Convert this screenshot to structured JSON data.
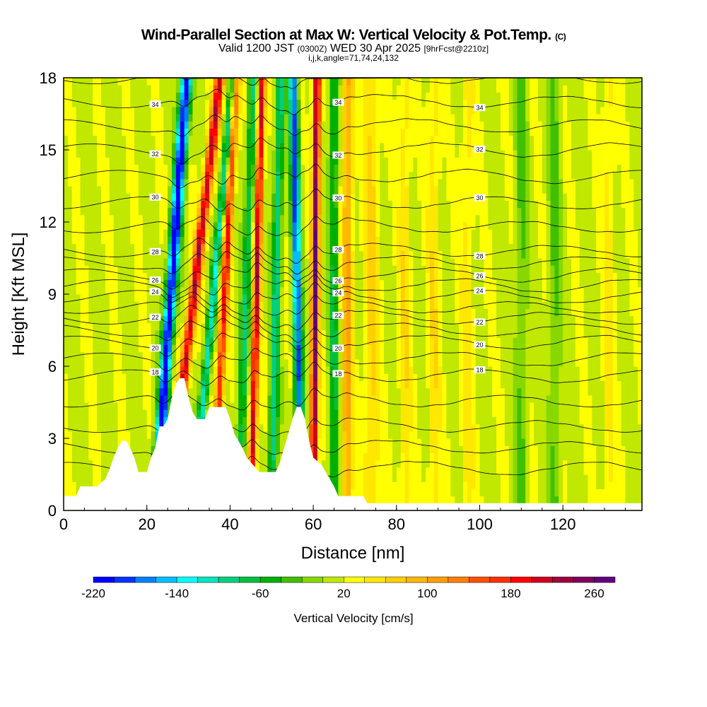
{
  "chart_data": {
    "type": "heatmap",
    "title": "Wind-Parallel Section at Max W: Vertical Velocity & Pot.Temp.",
    "title_mark": "(C)",
    "subtitle": "Valid 1200 JST",
    "subtitle_z": "(0300Z)",
    "subtitle_date": "WED 30 Apr 2025",
    "subtitle_fcst": "[9hrFcst@2210z]",
    "subtitle2": "i,j,k,angle=71,74,24,132",
    "xlabel": "Distance [nm]",
    "ylabel": "Height [Kft MSL]",
    "xlim": [
      0,
      139
    ],
    "ylim": [
      0,
      18
    ],
    "xticks": [
      0,
      20,
      40,
      60,
      80,
      100,
      120
    ],
    "yticks": [
      0,
      3,
      6,
      9,
      12,
      15,
      18
    ],
    "colorbar": {
      "label": "Vertical Velocity [cm/s]",
      "min": -220,
      "step": 20,
      "tick_labels": [
        -220,
        -140,
        -60,
        20,
        100,
        180,
        260
      ],
      "colors": [
        "#0000ff",
        "#0033ff",
        "#0080ff",
        "#00bfff",
        "#00ffff",
        "#00e5c0",
        "#00d080",
        "#00c040",
        "#00b000",
        "#40c000",
        "#88d800",
        "#c0e800",
        "#ffff00",
        "#ffe800",
        "#ffd000",
        "#ffb800",
        "#ffa000",
        "#ff8000",
        "#ff5000",
        "#ff3000",
        "#ff0000",
        "#d00020",
        "#a00040",
        "#800060",
        "#600080"
      ]
    },
    "w_stripes": [
      {
        "x0": 22,
        "slope": 0.42,
        "amp": -240,
        "width": 1.3
      },
      {
        "x0": 25,
        "slope": 0.7,
        "amp": 200,
        "width": 1.2
      },
      {
        "x0": 31,
        "slope": 0.55,
        "amp": -130,
        "width": 1.0
      },
      {
        "x0": 36,
        "slope": 0.3,
        "amp": 170,
        "width": 1.0
      },
      {
        "x0": 42,
        "slope": 0.2,
        "amp": -90,
        "width": 1.1
      },
      {
        "x0": 45,
        "slope": 0.15,
        "amp": 200,
        "width": 0.9
      },
      {
        "x0": 50,
        "slope": 0.12,
        "amp": -110,
        "width": 1.1
      },
      {
        "x0": 57,
        "slope": -0.1,
        "amp": -200,
        "width": 1.0
      },
      {
        "x0": 60,
        "slope": 0.05,
        "amp": 240,
        "width": 0.9
      },
      {
        "x0": 65,
        "slope": 0.0,
        "amp": -80,
        "width": 1.2
      },
      {
        "x0": 68,
        "slope": 0.02,
        "amp": 90,
        "width": 1.3
      },
      {
        "x0": 74,
        "slope": 0.0,
        "amp": 50,
        "width": 2.0
      },
      {
        "x0": 82,
        "slope": 0.0,
        "amp": 40,
        "width": 1.5
      },
      {
        "x0": 89,
        "slope": 0.0,
        "amp": 40,
        "width": 1.5
      },
      {
        "x0": 97,
        "slope": 0.0,
        "amp": 35,
        "width": 1.6
      },
      {
        "x0": 110,
        "slope": 0.0,
        "amp": -40,
        "width": 1.5
      },
      {
        "x0": 118,
        "slope": 0.0,
        "amp": -40,
        "width": 1.5
      },
      {
        "x0": 131,
        "slope": 0.0,
        "amp": 35,
        "width": 1.5
      }
    ],
    "w_background": -5,
    "terrain": {
      "x": [
        0,
        3,
        4,
        8,
        10,
        11,
        12,
        13,
        14,
        15,
        16,
        17,
        18,
        20,
        21,
        22,
        23,
        24,
        25,
        26,
        27,
        28,
        29,
        30,
        31,
        32,
        34,
        35,
        39,
        40,
        41,
        42,
        43,
        44,
        45,
        47,
        48,
        51,
        52,
        53,
        54,
        55,
        56,
        57,
        58,
        59,
        60,
        62,
        63,
        64,
        65,
        66,
        72,
        73,
        139
      ],
      "z": [
        0.6,
        0.6,
        1.0,
        1.0,
        1.3,
        1.7,
        2.2,
        2.6,
        2.9,
        2.9,
        2.6,
        2.2,
        1.6,
        1.6,
        2.2,
        2.6,
        3.5,
        3.5,
        3.8,
        4.7,
        5.3,
        5.5,
        5.5,
        4.7,
        4.1,
        3.8,
        3.8,
        4.3,
        4.3,
        3.8,
        3.2,
        2.9,
        2.6,
        2.2,
        2.0,
        1.6,
        1.6,
        1.6,
        2.0,
        2.6,
        3.2,
        3.8,
        4.3,
        4.3,
        3.8,
        2.9,
        2.2,
        1.9,
        1.6,
        1.3,
        1.0,
        0.6,
        0.6,
        0.3,
        0.3
      ]
    },
    "theta_levels": [
      14,
      15,
      16,
      17,
      18,
      19,
      20,
      21,
      22,
      23,
      24,
      25,
      26,
      27,
      28,
      29,
      30,
      31,
      32,
      33,
      34,
      35
    ],
    "theta_label_levels": [
      18,
      20,
      22,
      24,
      26,
      28,
      30,
      32,
      34
    ],
    "theta_height_profile": {
      "theta": [
        12,
        16,
        18,
        20,
        22,
        24,
        26,
        28,
        30,
        32,
        34,
        36
      ],
      "z": [
        0,
        3.5,
        5.6,
        7,
        8,
        8.9,
        9.8,
        10.8,
        12.8,
        15,
        17,
        19
      ]
    }
  }
}
